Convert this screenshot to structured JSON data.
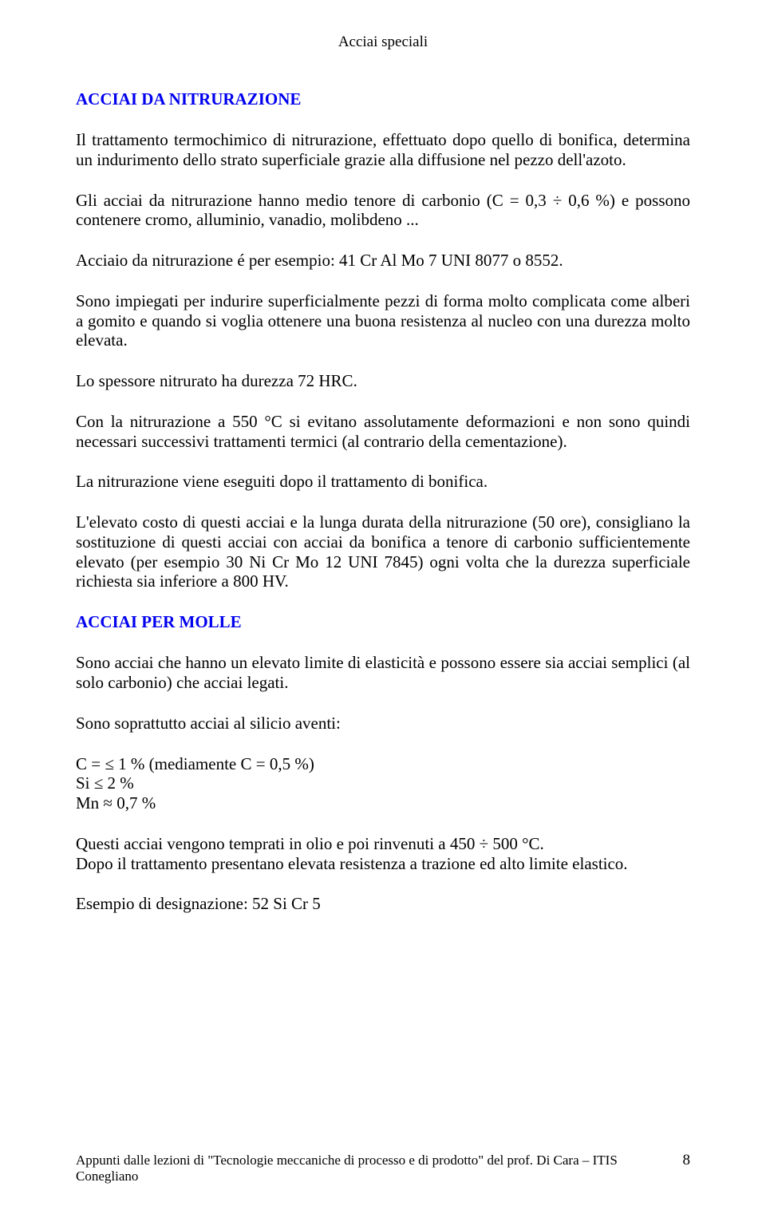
{
  "header": {
    "title": "Acciai speciali"
  },
  "section1": {
    "title": "ACCIAI DA NITRURAZIONE",
    "p1": "Il trattamento termochimico di nitrurazione, effettuato dopo quello di bonifica, determina un indurimento dello strato superficiale grazie alla diffusione nel pezzo dell'azoto.",
    "p2": "Gli acciai da nitrurazione hanno medio tenore di carbonio (C = 0,3 ÷ 0,6 %) e possono contenere cromo, alluminio, vanadio, molibdeno ...",
    "p3": "Acciaio da nitrurazione é per esempio: 41 Cr Al Mo 7 UNI 8077 o 8552.",
    "p4": "Sono impiegati per indurire superficialmente pezzi di forma molto complicata come alberi a gomito e quando si voglia ottenere una buona resistenza al nucleo con una durezza molto elevata.",
    "p5": "Lo spessore nitrurato ha durezza 72 HRC.",
    "p6": "Con la nitrurazione a 550 °C si evitano assolutamente deformazioni e non sono quindi necessari successivi trattamenti termici (al contrario della cementazione).",
    "p7": "La nitrurazione viene eseguiti dopo il trattamento di bonifica.",
    "p8": "L'elevato costo di questi acciai e la lunga durata della nitrurazione (50 ore), consigliano la sostituzione di questi acciai con acciai da bonifica a tenore di carbonio sufficientemente elevato (per esempio 30 Ni Cr Mo 12 UNI 7845) ogni volta che la durezza superficiale richiesta sia inferiore a 800 HV."
  },
  "section2": {
    "title": "ACCIAI PER MOLLE",
    "p1": "Sono acciai che hanno un elevato limite di elasticità e possono essere sia acciai semplici (al solo carbonio) che acciai legati.",
    "p2": "Sono soprattutto acciai al silicio aventi:",
    "line1": "C = ≤ 1 % (mediamente C = 0,5 %)",
    "line2": "Si ≤ 2 %",
    "line3": "Mn ≈ 0,7 %",
    "p3a": "Questi acciai vengono temprati in olio e poi rinvenuti a 450 ÷ 500 °C.",
    "p3b": "Dopo il trattamento presentano elevata resistenza a trazione ed alto limite elastico.",
    "p4": "Esempio di designazione: 52 Si Cr 5"
  },
  "footer": {
    "text": "Appunti dalle lezioni di \"Tecnologie meccaniche di processo e di prodotto\" del prof. Di Cara – ITIS Conegliano",
    "page": "8"
  }
}
